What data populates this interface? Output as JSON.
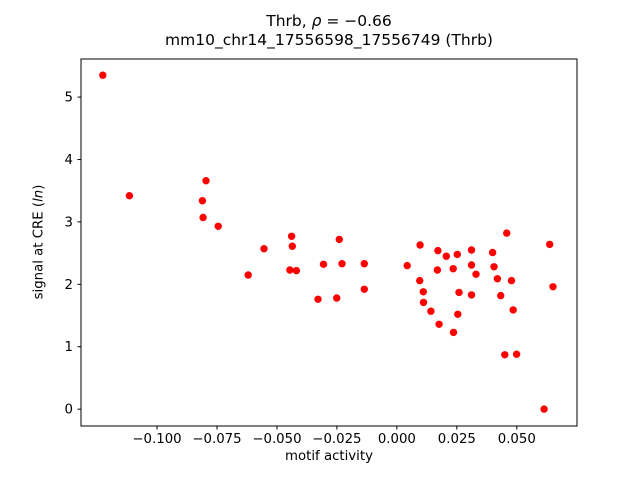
{
  "figure": {
    "title_parts": {
      "prefix": "Thrb, ",
      "rho": "ρ",
      "rest": " = −0.66"
    },
    "title_line2": "mm10_chr14_17556598_17556749 (Thrb)",
    "xlabel": "motif activity",
    "ylabel_parts": {
      "prefix": "signal at CRE (",
      "italic": "ln",
      "suffix": ")"
    }
  },
  "chart_data": {
    "type": "scatter",
    "title": "Thrb, ρ = −0.66",
    "subtitle": "mm10_chr14_17556598_17556749 (Thrb)",
    "xlabel": "motif activity",
    "ylabel": "signal at CRE (ln)",
    "marker_color": "#ff0000",
    "marker_radius_px": 3.7,
    "grid": false,
    "legend": "none",
    "xlim": [
      -0.1317,
      0.0751
    ],
    "ylim": [
      -0.27,
      5.61
    ],
    "xticks": [
      {
        "value": -0.1,
        "label": "−0.100"
      },
      {
        "value": -0.075,
        "label": "−0.075"
      },
      {
        "value": -0.05,
        "label": "−0.050"
      },
      {
        "value": -0.025,
        "label": "−0.025"
      },
      {
        "value": 0.0,
        "label": "0.000"
      },
      {
        "value": 0.025,
        "label": "0.025"
      },
      {
        "value": 0.05,
        "label": "0.050"
      }
    ],
    "yticks": [
      {
        "value": 0,
        "label": "0"
      },
      {
        "value": 1,
        "label": "1"
      },
      {
        "value": 2,
        "label": "2"
      },
      {
        "value": 3,
        "label": "3"
      },
      {
        "value": 4,
        "label": "4"
      },
      {
        "value": 5,
        "label": "5"
      }
    ],
    "points": [
      [
        -0.1226,
        5.35
      ],
      [
        -0.1115,
        3.42
      ],
      [
        -0.0796,
        3.66
      ],
      [
        -0.0811,
        3.34
      ],
      [
        -0.0808,
        3.07
      ],
      [
        -0.0745,
        2.93
      ],
      [
        -0.0554,
        2.57
      ],
      [
        -0.0439,
        2.77
      ],
      [
        -0.0436,
        2.61
      ],
      [
        -0.062,
        2.15
      ],
      [
        -0.0446,
        2.23
      ],
      [
        -0.0419,
        2.22
      ],
      [
        -0.0306,
        2.32
      ],
      [
        -0.0329,
        1.76
      ],
      [
        -0.024,
        2.72
      ],
      [
        -0.0229,
        2.33
      ],
      [
        -0.0136,
        2.33
      ],
      [
        -0.0136,
        1.92
      ],
      [
        -0.0251,
        1.78
      ],
      [
        0.0043,
        2.3
      ],
      [
        0.0097,
        2.63
      ],
      [
        0.0171,
        2.54
      ],
      [
        0.0206,
        2.45
      ],
      [
        0.0169,
        2.23
      ],
      [
        0.0095,
        2.06
      ],
      [
        0.011,
        1.88
      ],
      [
        0.0111,
        1.71
      ],
      [
        0.0142,
        1.57
      ],
      [
        0.0176,
        1.36
      ],
      [
        0.0252,
        2.48
      ],
      [
        0.0311,
        2.55
      ],
      [
        0.0399,
        2.51
      ],
      [
        0.0235,
        2.25
      ],
      [
        0.0311,
        2.31
      ],
      [
        0.033,
        2.16
      ],
      [
        0.0405,
        2.28
      ],
      [
        0.0419,
        2.09
      ],
      [
        0.0478,
        2.06
      ],
      [
        0.0259,
        1.87
      ],
      [
        0.0311,
        1.83
      ],
      [
        0.0433,
        1.82
      ],
      [
        0.0254,
        1.52
      ],
      [
        0.0236,
        1.23
      ],
      [
        0.0458,
        2.82
      ],
      [
        0.0637,
        2.64
      ],
      [
        0.0651,
        1.96
      ],
      [
        0.0485,
        1.59
      ],
      [
        0.045,
        0.87
      ],
      [
        0.0499,
        0.88
      ],
      [
        0.0614,
        0.0
      ]
    ]
  }
}
